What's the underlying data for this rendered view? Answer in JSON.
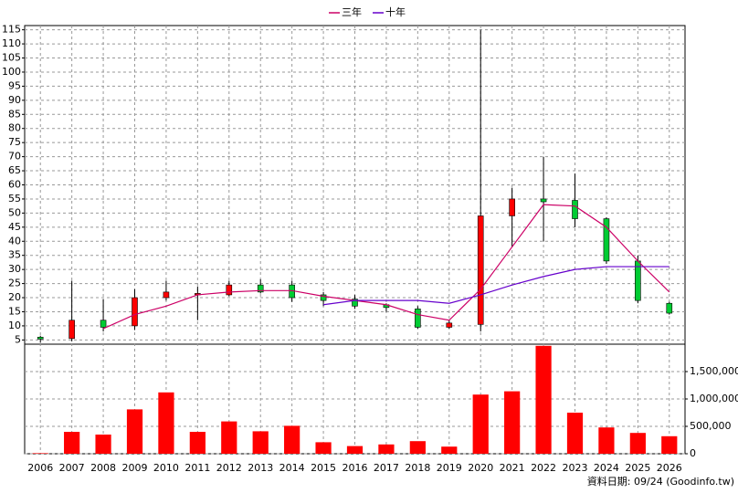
{
  "chart_data": {
    "type": "candlestick",
    "categories": [
      "2006",
      "2007",
      "2008",
      "2009",
      "2010",
      "2011",
      "2012",
      "2013",
      "2014",
      "2015",
      "2016",
      "2017",
      "2018",
      "2019",
      "2020",
      "2021",
      "2022",
      "2023",
      "2024",
      "2025",
      "2026"
    ],
    "open": [
      6,
      5.5,
      12,
      10,
      20,
      21,
      21,
      24.5,
      24.5,
      21,
      19.5,
      17.5,
      16,
      9.5,
      10.5,
      49,
      55,
      54.5,
      48,
      33,
      18
    ],
    "high": [
      6.5,
      26,
      19.5,
      23,
      26,
      24,
      26,
      26.5,
      26,
      22,
      21,
      18,
      17,
      12,
      115,
      59,
      70,
      64,
      48.5,
      35,
      18.5
    ],
    "low": [
      4,
      4.5,
      8,
      8.5,
      19,
      12,
      20.5,
      21.5,
      18.5,
      17,
      16,
      15,
      9,
      9,
      8,
      38,
      40,
      45,
      32,
      18,
      14
    ],
    "close": [
      5.3,
      12,
      9.5,
      20,
      22,
      21.5,
      24.5,
      22,
      20,
      19,
      17,
      16.5,
      9.5,
      11,
      49,
      55,
      54,
      48,
      33,
      19,
      14.5
    ],
    "up_color": "#ff0000",
    "down_color": "#00cc33",
    "series": [
      {
        "name": "三年",
        "color": "#cc0066",
        "values": [
          null,
          null,
          9,
          14,
          17,
          21,
          22,
          22.5,
          22.5,
          20.5,
          19,
          17.5,
          14,
          12,
          23,
          38,
          53,
          52.5,
          45,
          33,
          22
        ]
      },
      {
        "name": "十年",
        "color": "#6600cc",
        "values": [
          null,
          null,
          null,
          null,
          null,
          null,
          null,
          null,
          null,
          17.5,
          19,
          19,
          19,
          18,
          21,
          24.5,
          27.5,
          30,
          31,
          31,
          31
        ]
      }
    ],
    "ylim": [
      3.5,
      116.5
    ],
    "yticks": [
      5,
      10,
      15,
      20,
      25,
      30,
      35,
      40,
      45,
      50,
      55,
      60,
      65,
      70,
      75,
      80,
      85,
      90,
      95,
      100,
      105,
      110,
      115
    ],
    "volume": {
      "color": "#ff0000",
      "values": [
        10000,
        400000,
        350000,
        810000,
        1120000,
        400000,
        590000,
        410000,
        510000,
        210000,
        140000,
        170000,
        230000,
        130000,
        1080000,
        1140000,
        1970000,
        750000,
        480000,
        380000,
        320000
      ],
      "ylim": [
        0,
        2000000
      ],
      "yticks": [
        0,
        {
          "value": 500000,
          "label": "500,000"
        },
        {
          "value": 1000000,
          "label": "1,000,000"
        },
        {
          "value": 1500000,
          "label": "1,500,000"
        }
      ]
    },
    "grid": true,
    "note": "資料日期: 09/24  (Goodinfo.tw)"
  }
}
